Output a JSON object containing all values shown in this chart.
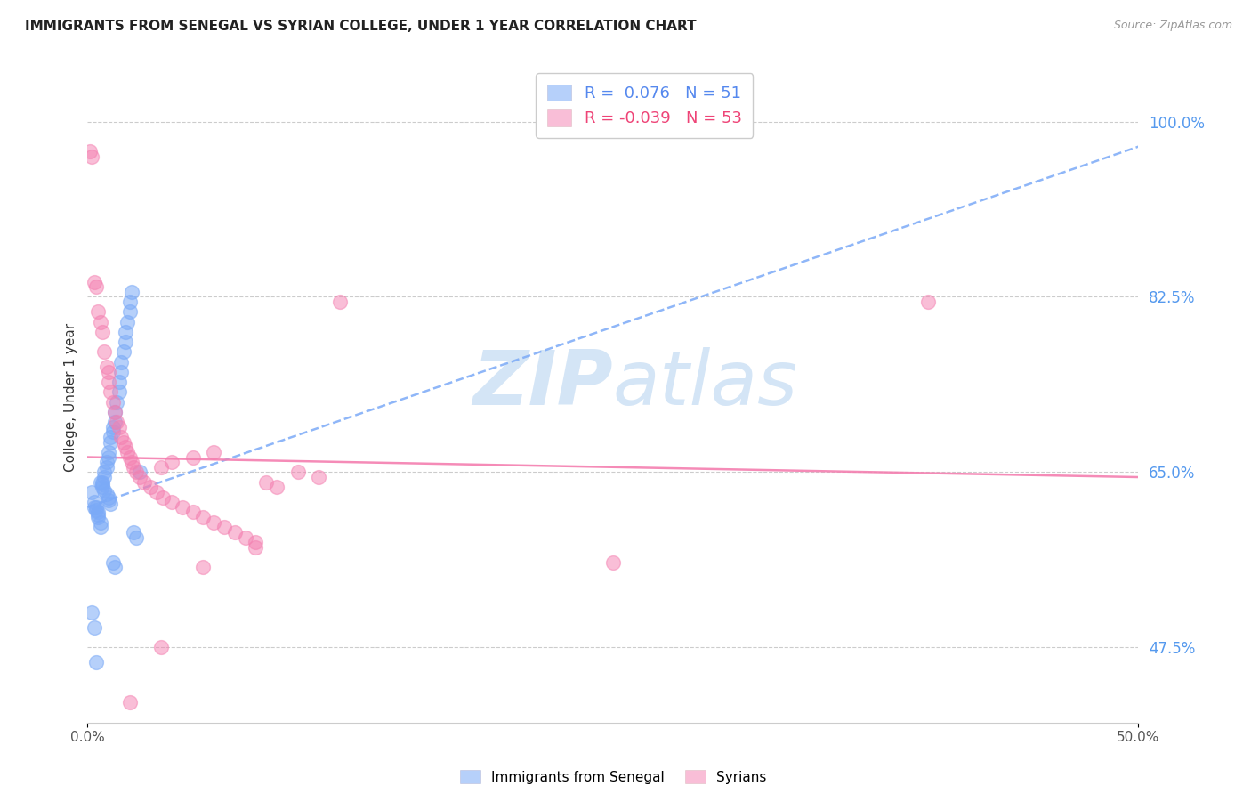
{
  "title": "IMMIGRANTS FROM SENEGAL VS SYRIAN COLLEGE, UNDER 1 YEAR CORRELATION CHART",
  "source": "Source: ZipAtlas.com",
  "ylabel": "College, Under 1 year",
  "xlim": [
    0.0,
    0.5
  ],
  "ylim": [
    0.4,
    1.05
  ],
  "xticks": [
    0.0,
    0.5
  ],
  "xticklabels": [
    "0.0%",
    "50.0%"
  ],
  "yticks_right": [
    0.475,
    0.65,
    0.825,
    1.0
  ],
  "yticklabels_right": [
    "47.5%",
    "65.0%",
    "82.5%",
    "100.0%"
  ],
  "blue_color": "#7baaf7",
  "pink_color": "#f47fb0",
  "blue_R": 0.076,
  "blue_N": 51,
  "pink_R": -0.039,
  "pink_N": 53,
  "legend_label_blue": "Immigrants from Senegal",
  "legend_label_pink": "Syrians",
  "watermark_zip": "ZIP",
  "watermark_atlas": "atlas",
  "blue_trend": [
    0.0,
    0.615,
    0.5,
    0.975
  ],
  "pink_trend": [
    0.0,
    0.665,
    0.5,
    0.645
  ],
  "blue_scatter_x": [
    0.002,
    0.003,
    0.004,
    0.005,
    0.005,
    0.006,
    0.006,
    0.007,
    0.007,
    0.008,
    0.008,
    0.009,
    0.009,
    0.01,
    0.01,
    0.01,
    0.011,
    0.011,
    0.012,
    0.012,
    0.013,
    0.013,
    0.014,
    0.015,
    0.015,
    0.016,
    0.016,
    0.017,
    0.018,
    0.018,
    0.019,
    0.02,
    0.02,
    0.021,
    0.022,
    0.023,
    0.025,
    0.003,
    0.004,
    0.005,
    0.006,
    0.007,
    0.008,
    0.009,
    0.01,
    0.011,
    0.012,
    0.013,
    0.002,
    0.003,
    0.004
  ],
  "blue_scatter_y": [
    0.63,
    0.62,
    0.615,
    0.61,
    0.605,
    0.6,
    0.595,
    0.635,
    0.64,
    0.645,
    0.65,
    0.655,
    0.66,
    0.665,
    0.67,
    0.625,
    0.68,
    0.685,
    0.69,
    0.695,
    0.7,
    0.71,
    0.72,
    0.73,
    0.74,
    0.75,
    0.76,
    0.77,
    0.78,
    0.79,
    0.8,
    0.81,
    0.82,
    0.83,
    0.59,
    0.585,
    0.65,
    0.615,
    0.612,
    0.608,
    0.64,
    0.638,
    0.632,
    0.628,
    0.622,
    0.618,
    0.56,
    0.555,
    0.51,
    0.495,
    0.46
  ],
  "pink_scatter_x": [
    0.001,
    0.002,
    0.003,
    0.004,
    0.005,
    0.006,
    0.007,
    0.008,
    0.009,
    0.01,
    0.01,
    0.011,
    0.012,
    0.013,
    0.014,
    0.015,
    0.016,
    0.017,
    0.018,
    0.019,
    0.02,
    0.021,
    0.022,
    0.023,
    0.025,
    0.027,
    0.03,
    0.033,
    0.036,
    0.04,
    0.045,
    0.05,
    0.055,
    0.06,
    0.065,
    0.07,
    0.075,
    0.08,
    0.085,
    0.09,
    0.1,
    0.11,
    0.12,
    0.035,
    0.04,
    0.05,
    0.06,
    0.25,
    0.4,
    0.055,
    0.08,
    0.035,
    0.02
  ],
  "pink_scatter_y": [
    0.97,
    0.965,
    0.84,
    0.835,
    0.81,
    0.8,
    0.79,
    0.77,
    0.755,
    0.75,
    0.74,
    0.73,
    0.72,
    0.71,
    0.7,
    0.695,
    0.685,
    0.68,
    0.675,
    0.67,
    0.665,
    0.66,
    0.655,
    0.65,
    0.645,
    0.64,
    0.635,
    0.63,
    0.625,
    0.62,
    0.615,
    0.61,
    0.605,
    0.6,
    0.595,
    0.59,
    0.585,
    0.58,
    0.64,
    0.635,
    0.65,
    0.645,
    0.82,
    0.655,
    0.66,
    0.665,
    0.67,
    0.56,
    0.82,
    0.555,
    0.575,
    0.475,
    0.42
  ]
}
